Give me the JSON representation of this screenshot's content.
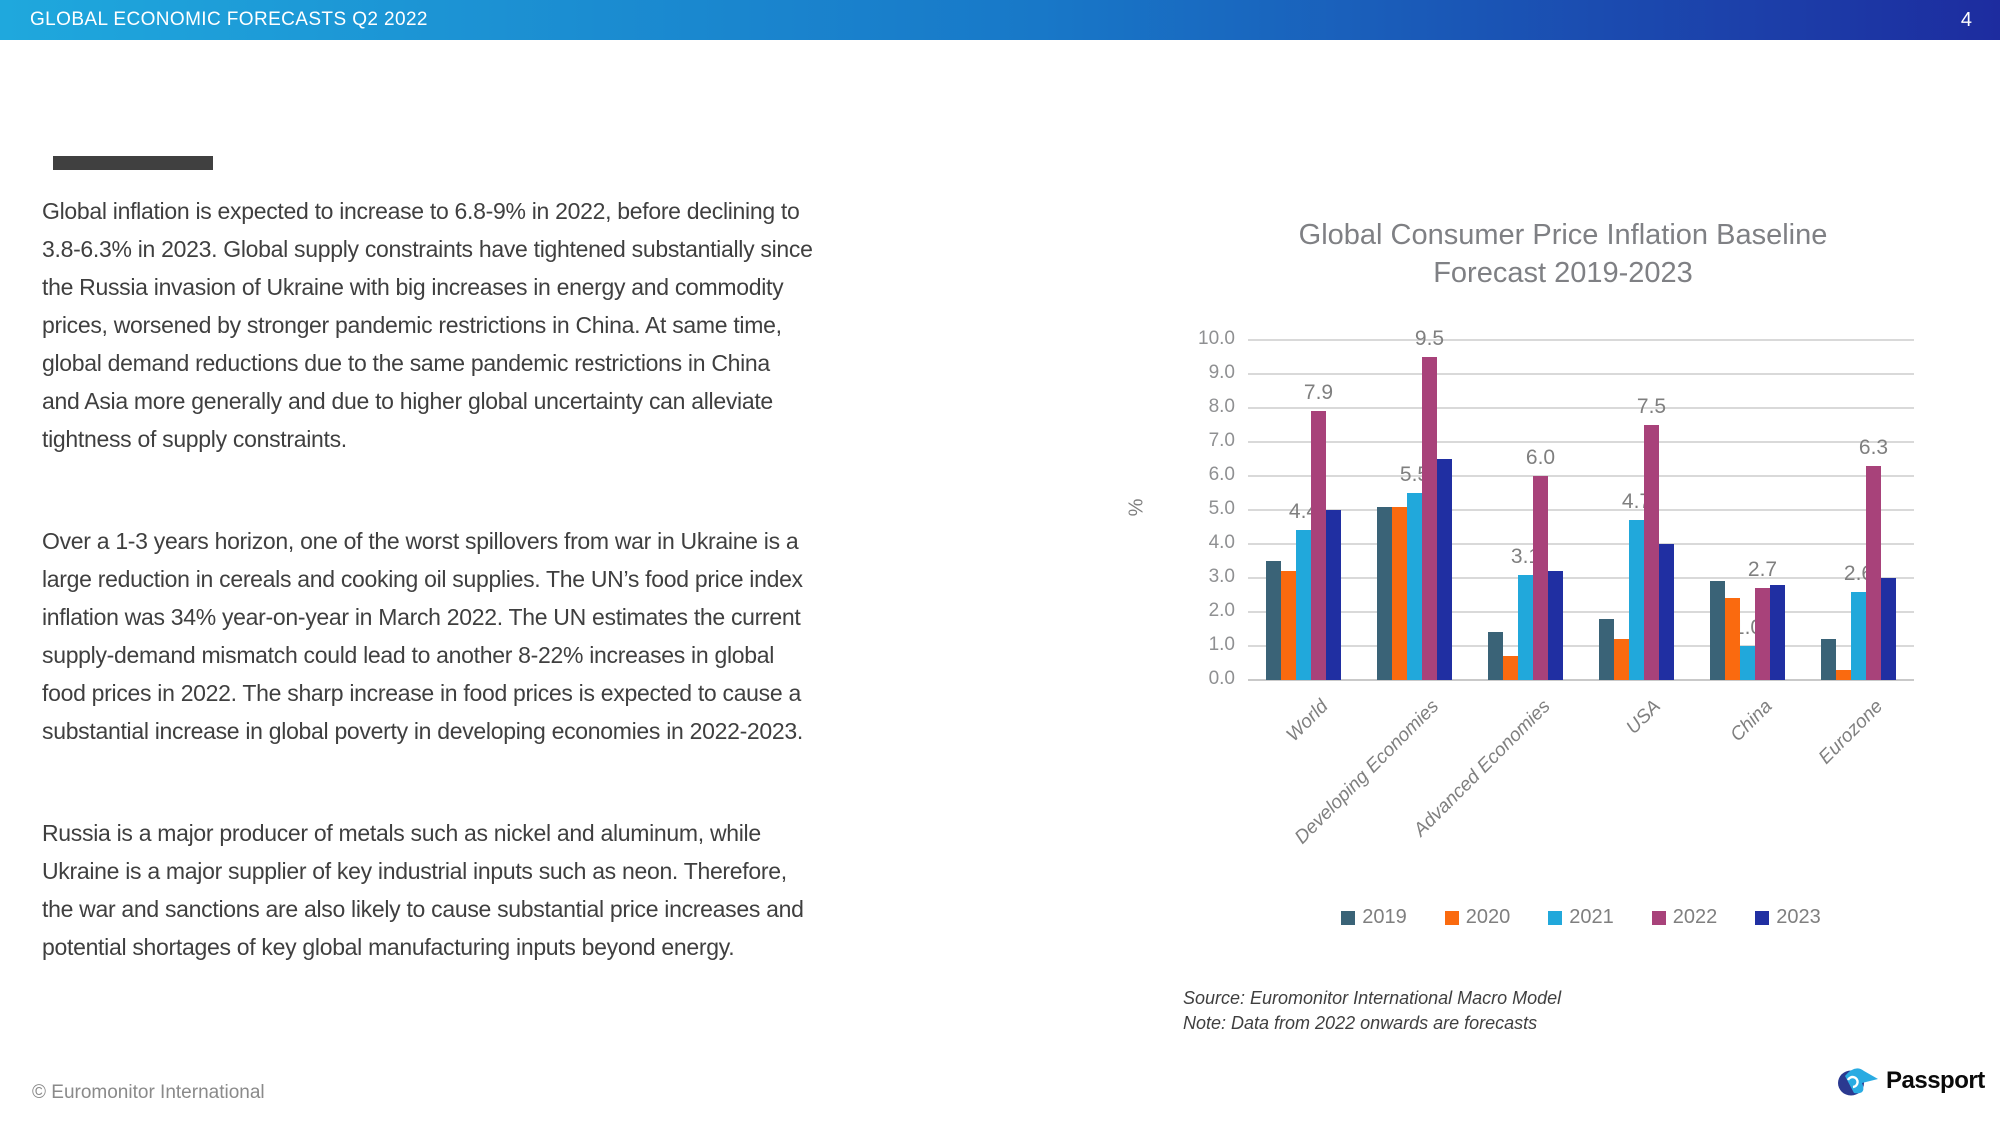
{
  "header": {
    "title": "GLOBAL ECONOMIC FORECASTS Q2 2022",
    "page_number": "4",
    "gradient_left": "#1FA8DD",
    "gradient_right": "#1D2C9F"
  },
  "body": {
    "paragraphs": [
      "Global inflation is expected to increase to 6.8-9% in 2022, before declining to\n3.8-6.3% in 2023. Global supply constraints have tightened substantially since\nthe Russia invasion of Ukraine with big increases in energy and commodity\nprices, worsened by stronger pandemic restrictions in China. At same time,\nglobal demand reductions due to the same pandemic restrictions in China\nand Asia more generally and due to higher global uncertainty can alleviate\ntightness of supply constraints.",
      "Over a 1-3 years horizon, one of the worst spillovers from war in Ukraine is a\nlarge reduction in cereals and cooking oil supplies. The UN’s  food price index\ninflation was 34% year-on-year in March 2022. The UN estimates the current\nsupply-demand mismatch could lead to another 8-22% increases in global\nfood prices in 2022. The sharp increase in food prices is expected to cause a\nsubstantial increase in global poverty in developing economies in 2022-2023.",
      "Russia is a major producer of metals such as nickel and aluminum, while\nUkraine is a major supplier of key industrial inputs such as neon. Therefore,\nthe war and sanctions are also likely to cause substantial price increases and\npotential shortages of key global manufacturing inputs beyond energy."
    ]
  },
  "chart_data": {
    "type": "bar",
    "title": "Global Consumer Price Inflation Baseline Forecast 2019-2023",
    "title_lines": [
      "Global Consumer Price Inflation Baseline",
      "Forecast 2019-2023"
    ],
    "xlabel": "",
    "ylabel": "%",
    "ylim": [
      0,
      10
    ],
    "ytick_step": 1.0,
    "grid": true,
    "legend_position": "bottom",
    "categories": [
      "World",
      "Developing Economies",
      "Advanced Economies",
      "USA",
      "China",
      "Eurozone"
    ],
    "series": [
      {
        "name": "2019",
        "color": "#3A6377",
        "values": [
          3.5,
          5.1,
          1.4,
          1.8,
          2.9,
          1.2
        ],
        "show_labels": false,
        "label_layer": "behind"
      },
      {
        "name": "2020",
        "color": "#FA6A0F",
        "values": [
          3.2,
          5.1,
          0.7,
          1.2,
          2.4,
          0.3
        ],
        "show_labels": false,
        "label_layer": "behind"
      },
      {
        "name": "2021",
        "color": "#21A8DB",
        "values": [
          4.4,
          5.5,
          3.1,
          4.7,
          1.0,
          2.6
        ],
        "show_labels": true,
        "label_layer": "behind"
      },
      {
        "name": "2022",
        "color": "#A8427A",
        "values": [
          7.9,
          9.5,
          6.0,
          7.5,
          2.7,
          6.3
        ],
        "show_labels": true,
        "label_layer": "front"
      },
      {
        "name": "2023",
        "color": "#202FA2",
        "values": [
          5.0,
          6.5,
          3.2,
          4.0,
          2.8,
          3.0
        ],
        "show_labels": false,
        "label_layer": "behind"
      }
    ],
    "source_note": "Source: Euromonitor International Macro Model",
    "note": "Note: Data from 2022 onwards are forecasts"
  },
  "footer": {
    "copyright": "© Euromonitor International",
    "logo_text": "Passport"
  }
}
